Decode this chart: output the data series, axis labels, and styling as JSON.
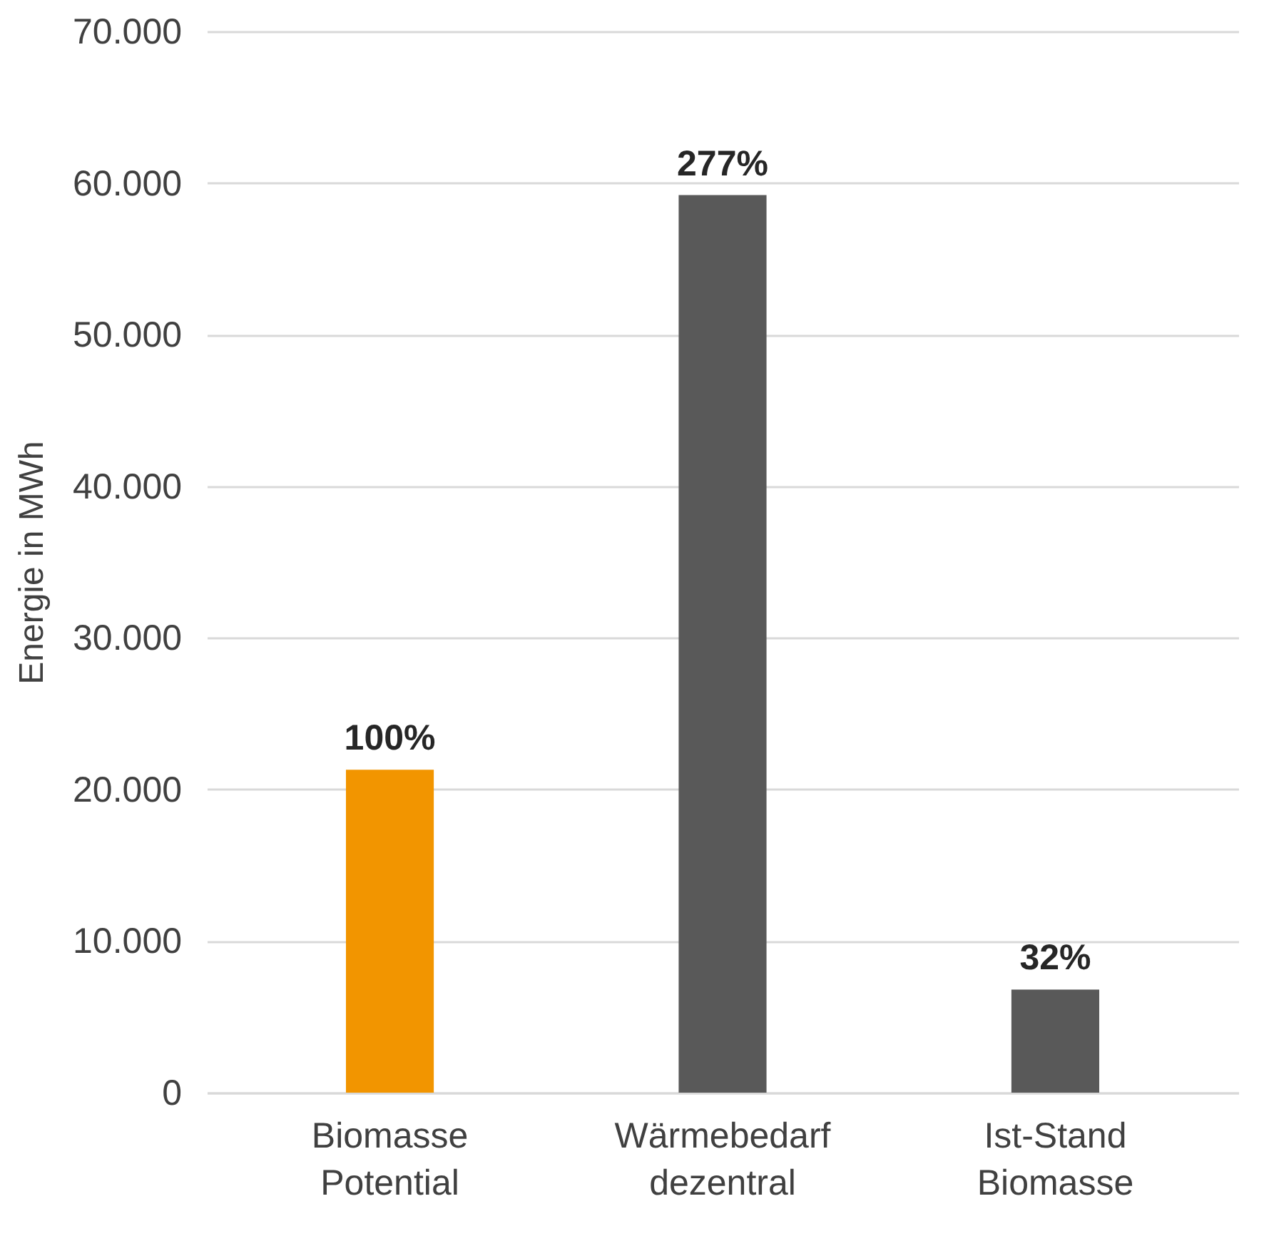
{
  "chart_data": {
    "type": "bar",
    "ylabel": "Energie in MWh",
    "categories": [
      "Biomasse Potential",
      "Wärmebedarf dezentral",
      "Ist-Stand Biomasse"
    ],
    "values": [
      21300,
      59200,
      6800
    ],
    "colors": [
      "#f29500",
      "#595959",
      "#595959"
    ],
    "annotations": [
      {
        "text": "100%",
        "x": "Biomasse Potential",
        "y": 21300
      },
      {
        "text": "277%",
        "x": "Wärmebedarf dezentral",
        "y": 59200
      },
      {
        "text": "32%",
        "x": "Ist-Stand Biomasse",
        "y": 6800
      }
    ],
    "ylim": [
      0,
      70000
    ],
    "yticks": [
      {
        "value": 0,
        "label": "0"
      },
      {
        "value": 10000,
        "label": "10.000"
      },
      {
        "value": 20000,
        "label": "20.000"
      },
      {
        "value": 30000,
        "label": "30.000"
      },
      {
        "value": 40000,
        "label": "40.000"
      },
      {
        "value": 50000,
        "label": "50.000"
      },
      {
        "value": 60000,
        "label": "60.000"
      },
      {
        "value": 70000,
        "label": "70.000"
      }
    ],
    "grid": "y"
  }
}
